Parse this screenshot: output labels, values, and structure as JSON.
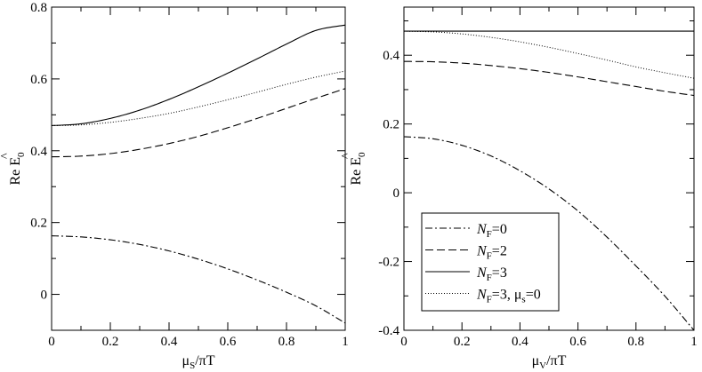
{
  "chart_data": [
    {
      "type": "line",
      "xlabel": "μS/πT",
      "ylabel": "Re Ê0",
      "xlim": [
        0,
        1
      ],
      "ylim": [
        -0.1,
        0.8
      ],
      "xticks": [
        0,
        0.2,
        0.4,
        0.6,
        0.8,
        1
      ],
      "xtick_labels": [
        "0",
        "0.2",
        "0.4",
        "0.6",
        "0.8",
        "1"
      ],
      "yticks": [
        0,
        0.2,
        0.4,
        0.6,
        0.8
      ],
      "ytick_labels": [
        "0",
        "0.2",
        "0.4",
        "0.6",
        "0.8"
      ],
      "grid": false,
      "series": [
        {
          "style": "dashdot",
          "x": [
            0,
            0.1,
            0.2,
            0.3,
            0.4,
            0.5,
            0.6,
            0.7,
            0.8,
            0.9,
            1.0
          ],
          "values": [
            0.163,
            0.16,
            0.152,
            0.139,
            0.121,
            0.098,
            0.071,
            0.04,
            0.006,
            -0.032,
            -0.08
          ]
        },
        {
          "style": "dashed",
          "x": [
            0,
            0.1,
            0.2,
            0.3,
            0.4,
            0.5,
            0.6,
            0.7,
            0.8,
            0.9,
            1.0
          ],
          "values": [
            0.383,
            0.385,
            0.392,
            0.404,
            0.42,
            0.44,
            0.464,
            0.49,
            0.518,
            0.546,
            0.573
          ]
        },
        {
          "style": "solid",
          "x": [
            0,
            0.1,
            0.2,
            0.3,
            0.4,
            0.5,
            0.6,
            0.7,
            0.8,
            0.9,
            1.0
          ],
          "values": [
            0.47,
            0.475,
            0.49,
            0.513,
            0.543,
            0.578,
            0.616,
            0.656,
            0.697,
            0.735,
            0.75
          ]
        },
        {
          "style": "dotted",
          "x": [
            0,
            0.1,
            0.2,
            0.3,
            0.4,
            0.5,
            0.6,
            0.7,
            0.8,
            0.9,
            1.0
          ],
          "values": [
            0.47,
            0.472,
            0.479,
            0.49,
            0.504,
            0.522,
            0.542,
            0.563,
            0.585,
            0.605,
            0.622
          ]
        }
      ]
    },
    {
      "type": "line",
      "xlabel": "μV/πT",
      "ylabel": "Re Ê0",
      "xlim": [
        0,
        1
      ],
      "ylim": [
        -0.4,
        0.54
      ],
      "xticks": [
        0,
        0.2,
        0.4,
        0.6,
        0.8,
        1
      ],
      "xtick_labels": [
        "0",
        "0.2",
        "0.4",
        "0.6",
        "0.8",
        "1"
      ],
      "yticks": [
        -0.4,
        -0.2,
        0,
        0.2,
        0.4
      ],
      "ytick_labels": [
        "-0.4",
        "-0.2",
        "0",
        "0.2",
        "0.4"
      ],
      "grid": false,
      "legend_position": "bottom-left",
      "series": [
        {
          "name": "NF=0",
          "style": "dashdot",
          "x": [
            0,
            0.1,
            0.2,
            0.3,
            0.4,
            0.5,
            0.6,
            0.7,
            0.8,
            0.9,
            1.0
          ],
          "values": [
            0.163,
            0.157,
            0.138,
            0.107,
            0.064,
            0.011,
            -0.053,
            -0.129,
            -0.213,
            -0.301,
            -0.4
          ]
        },
        {
          "name": "NF=2",
          "style": "dashed",
          "x": [
            0,
            0.1,
            0.2,
            0.3,
            0.4,
            0.5,
            0.6,
            0.7,
            0.8,
            0.9,
            1.0
          ],
          "values": [
            0.382,
            0.381,
            0.377,
            0.37,
            0.361,
            0.35,
            0.337,
            0.323,
            0.309,
            0.295,
            0.283
          ]
        },
        {
          "name": "NF=3",
          "style": "solid",
          "x": [
            0,
            0.1,
            0.2,
            0.3,
            0.4,
            0.5,
            0.6,
            0.7,
            0.8,
            0.9,
            1.0
          ],
          "values": [
            0.47,
            0.47,
            0.47,
            0.47,
            0.47,
            0.47,
            0.47,
            0.47,
            0.47,
            0.47,
            0.47
          ]
        },
        {
          "name": "NF=3, μs=0",
          "style": "dotted",
          "x": [
            0,
            0.1,
            0.2,
            0.3,
            0.4,
            0.5,
            0.6,
            0.7,
            0.8,
            0.9,
            1.0
          ],
          "values": [
            0.47,
            0.468,
            0.462,
            0.452,
            0.439,
            0.423,
            0.405,
            0.386,
            0.366,
            0.349,
            0.333
          ]
        }
      ],
      "legend_entries": [
        {
          "base": "N",
          "sub": "F",
          "rest": "=0",
          "style": "dashdot"
        },
        {
          "base": "N",
          "sub": "F",
          "rest": "=2",
          "style": "dashed"
        },
        {
          "base": "N",
          "sub": "F",
          "rest": "=3",
          "style": "solid"
        },
        {
          "base": "N",
          "sub": "F",
          "rest": "=3, μ",
          "sub2": "s",
          "rest2": "=0",
          "style": "dotted"
        }
      ]
    }
  ],
  "labels": {
    "xlabel_left": {
      "mu": "μ",
      "sub": "S",
      "rest": "/πT"
    },
    "xlabel_right": {
      "mu": "μ",
      "sub": "V",
      "rest": "/πT"
    },
    "ylabel": {
      "pre": "Re ",
      "E": "E",
      "sub": "0",
      "hat": "^"
    }
  }
}
